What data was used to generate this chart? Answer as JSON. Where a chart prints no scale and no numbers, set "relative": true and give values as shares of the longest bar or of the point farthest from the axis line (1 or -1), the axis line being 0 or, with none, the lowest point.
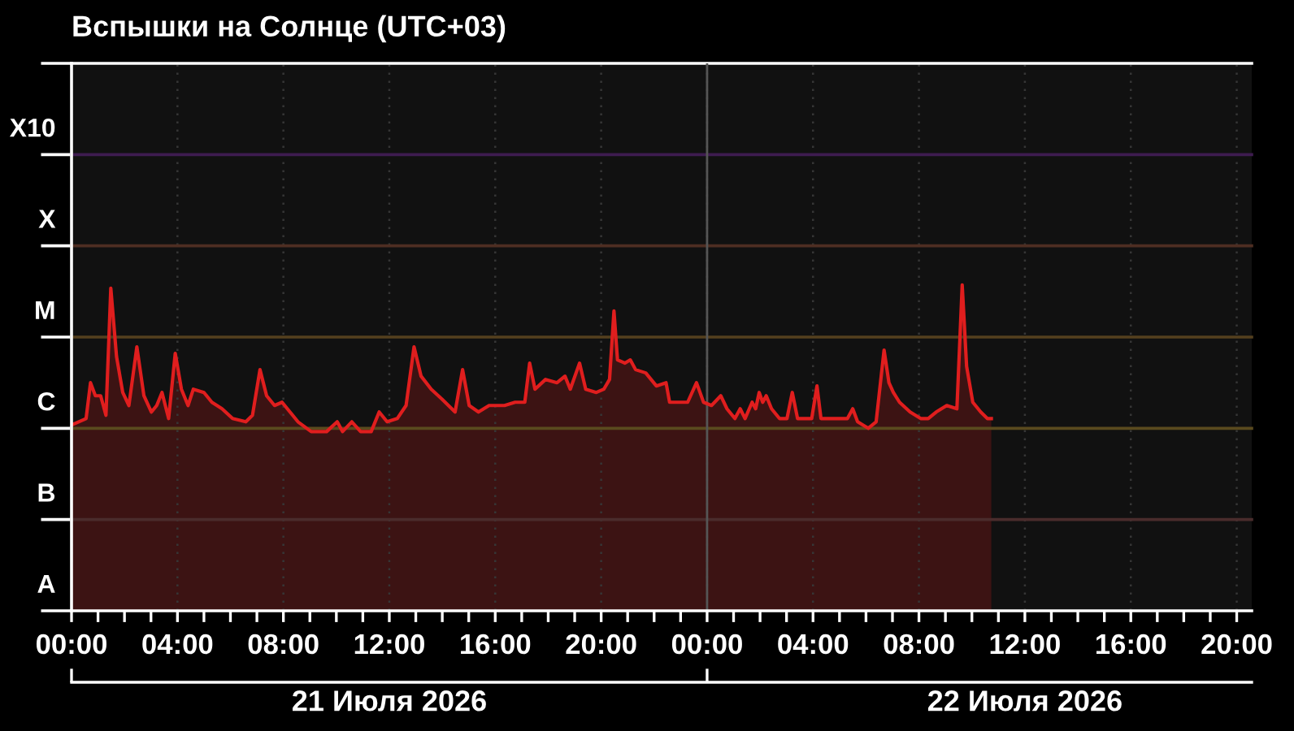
{
  "chart_data": {
    "type": "area",
    "title": "Вспышки на Солнце (UTC+03)",
    "relative": true,
    "grid": "x",
    "xlim": [
      "2026-07-21T00:00",
      "2026-07-22T20:34"
    ],
    "xticks": [
      {
        "value": "2026-07-21T00:00",
        "label": "00:00"
      },
      {
        "value": "2026-07-21T01:00",
        "label": null
      },
      {
        "value": "2026-07-21T02:00",
        "label": null
      },
      {
        "value": "2026-07-21T03:00",
        "label": null
      },
      {
        "value": "2026-07-21T04:00",
        "label": "04:00"
      },
      {
        "value": "2026-07-21T05:00",
        "label": null
      },
      {
        "value": "2026-07-21T06:00",
        "label": null
      },
      {
        "value": "2026-07-21T07:00",
        "label": null
      },
      {
        "value": "2026-07-21T08:00",
        "label": "08:00"
      },
      {
        "value": "2026-07-21T09:00",
        "label": null
      },
      {
        "value": "2026-07-21T10:00",
        "label": null
      },
      {
        "value": "2026-07-21T11:00",
        "label": null
      },
      {
        "value": "2026-07-21T12:00",
        "label": "12:00"
      },
      {
        "value": "2026-07-21T13:00",
        "label": null
      },
      {
        "value": "2026-07-21T14:00",
        "label": null
      },
      {
        "value": "2026-07-21T15:00",
        "label": null
      },
      {
        "value": "2026-07-21T16:00",
        "label": "16:00"
      },
      {
        "value": "2026-07-21T17:00",
        "label": null
      },
      {
        "value": "2026-07-21T18:00",
        "label": null
      },
      {
        "value": "2026-07-21T19:00",
        "label": null
      },
      {
        "value": "2026-07-21T20:00",
        "label": "20:00"
      },
      {
        "value": "2026-07-21T21:00",
        "label": null
      },
      {
        "value": "2026-07-21T22:00",
        "label": null
      },
      {
        "value": "2026-07-21T23:00",
        "label": null
      },
      {
        "value": "2026-07-22T00:00",
        "label": "00:00"
      },
      {
        "value": "2026-07-22T01:00",
        "label": null
      },
      {
        "value": "2026-07-22T02:00",
        "label": null
      },
      {
        "value": "2026-07-22T03:00",
        "label": null
      },
      {
        "value": "2026-07-22T04:00",
        "label": "04:00"
      },
      {
        "value": "2026-07-22T05:00",
        "label": null
      },
      {
        "value": "2026-07-22T06:00",
        "label": null
      },
      {
        "value": "2026-07-22T07:00",
        "label": null
      },
      {
        "value": "2026-07-22T08:00",
        "label": "08:00"
      },
      {
        "value": "2026-07-22T09:00",
        "label": null
      },
      {
        "value": "2026-07-22T10:00",
        "label": null
      },
      {
        "value": "2026-07-22T11:00",
        "label": null
      },
      {
        "value": "2026-07-22T12:00",
        "label": "12:00"
      },
      {
        "value": "2026-07-22T13:00",
        "label": null
      },
      {
        "value": "2026-07-22T14:00",
        "label": null
      },
      {
        "value": "2026-07-22T15:00",
        "label": null
      },
      {
        "value": "2026-07-22T16:00",
        "label": "16:00"
      },
      {
        "value": "2026-07-22T17:00",
        "label": null
      },
      {
        "value": "2026-07-22T18:00",
        "label": null
      },
      {
        "value": "2026-07-22T19:00",
        "label": null
      },
      {
        "value": "2026-07-22T20:00",
        "label": "20:00"
      }
    ],
    "series": [
      {
        "color": "#e01e1e",
        "x": [
          "2026-07-21T00:00",
          "2026-07-21T00:33",
          "2026-07-21T00:43",
          "2026-07-21T00:54",
          "2026-07-21T01:06",
          "2026-07-21T01:18",
          "2026-07-21T01:29",
          "2026-07-21T01:42",
          "2026-07-21T01:56",
          "2026-07-21T02:10",
          "2026-07-21T02:28",
          "2026-07-21T02:44",
          "2026-07-21T03:01",
          "2026-07-21T03:13",
          "2026-07-21T03:25",
          "2026-07-21T03:40",
          "2026-07-21T03:55",
          "2026-07-21T04:09",
          "2026-07-21T04:24",
          "2026-07-21T04:36",
          "2026-07-21T05:00",
          "2026-07-21T05:18",
          "2026-07-21T05:41",
          "2026-07-21T06:05",
          "2026-07-21T06:35",
          "2026-07-21T06:50",
          "2026-07-21T07:07",
          "2026-07-21T07:22",
          "2026-07-21T07:40",
          "2026-07-21T07:57",
          "2026-07-21T08:15",
          "2026-07-21T08:33",
          "2026-07-21T09:03",
          "2026-07-21T09:38",
          "2026-07-21T10:02",
          "2026-07-21T10:14",
          "2026-07-21T10:35",
          "2026-07-21T10:55",
          "2026-07-21T11:19",
          "2026-07-21T11:37",
          "2026-07-21T11:55",
          "2026-07-21T12:18",
          "2026-07-21T12:38",
          "2026-07-21T12:56",
          "2026-07-21T13:12",
          "2026-07-21T13:35",
          "2026-07-21T13:59",
          "2026-07-21T14:29",
          "2026-07-21T14:46",
          "2026-07-21T15:01",
          "2026-07-21T15:22",
          "2026-07-21T15:46",
          "2026-07-21T16:21",
          "2026-07-21T16:45",
          "2026-07-21T17:07",
          "2026-07-21T17:18",
          "2026-07-21T17:30",
          "2026-07-21T17:54",
          "2026-07-21T18:20",
          "2026-07-21T18:38",
          "2026-07-21T18:50",
          "2026-07-21T19:11",
          "2026-07-21T19:25",
          "2026-07-21T19:49",
          "2026-07-21T20:06",
          "2026-07-21T20:19",
          "2026-07-21T20:29",
          "2026-07-21T20:37",
          "2026-07-21T20:54",
          "2026-07-21T21:06",
          "2026-07-21T21:18",
          "2026-07-21T21:41",
          "2026-07-21T22:05",
          "2026-07-21T22:27",
          "2026-07-21T22:35",
          "2026-07-21T22:59",
          "2026-07-21T23:16",
          "2026-07-21T23:36",
          "2026-07-21T23:52",
          "2026-07-22T00:10",
          "2026-07-22T00:31",
          "2026-07-22T00:45",
          "2026-07-22T01:03",
          "2026-07-22T01:15",
          "2026-07-22T01:26",
          "2026-07-22T01:42",
          "2026-07-22T01:50",
          "2026-07-22T01:58",
          "2026-07-22T02:06",
          "2026-07-22T02:14",
          "2026-07-22T02:26",
          "2026-07-22T02:44",
          "2026-07-22T03:01",
          "2026-07-22T03:13",
          "2026-07-22T03:25",
          "2026-07-22T03:43",
          "2026-07-22T03:57",
          "2026-07-22T04:09",
          "2026-07-22T04:18",
          "2026-07-22T04:54",
          "2026-07-22T05:18",
          "2026-07-22T05:30",
          "2026-07-22T05:41",
          "2026-07-22T06:05",
          "2026-07-22T06:23",
          "2026-07-22T06:41",
          "2026-07-22T06:52",
          "2026-07-22T07:02",
          "2026-07-22T07:16",
          "2026-07-22T07:40",
          "2026-07-22T08:04",
          "2026-07-22T08:21",
          "2026-07-22T08:39",
          "2026-07-22T09:03",
          "2026-07-22T09:26",
          "2026-07-22T09:38",
          "2026-07-22T09:48",
          "2026-07-22T10:02",
          "2026-07-22T10:20",
          "2026-07-22T10:35",
          "2026-07-22T10:44"
        ],
        "values": [
          0.57,
          0.59,
          0.7,
          0.66,
          0.66,
          0.6,
          0.99,
          0.78,
          0.67,
          0.63,
          0.81,
          0.66,
          0.61,
          0.63,
          0.67,
          0.59,
          0.79,
          0.68,
          0.63,
          0.68,
          0.67,
          0.64,
          0.62,
          0.59,
          0.58,
          0.6,
          0.74,
          0.66,
          0.63,
          0.64,
          0.61,
          0.58,
          0.55,
          0.55,
          0.58,
          0.55,
          0.58,
          0.55,
          0.55,
          0.61,
          0.58,
          0.59,
          0.63,
          0.81,
          0.72,
          0.68,
          0.65,
          0.61,
          0.74,
          0.63,
          0.61,
          0.63,
          0.63,
          0.64,
          0.64,
          0.76,
          0.68,
          0.71,
          0.7,
          0.72,
          0.68,
          0.76,
          0.68,
          0.67,
          0.68,
          0.71,
          0.92,
          0.77,
          0.76,
          0.77,
          0.74,
          0.73,
          0.69,
          0.7,
          0.64,
          0.64,
          0.64,
          0.7,
          0.64,
          0.63,
          0.66,
          0.62,
          0.59,
          0.62,
          0.59,
          0.64,
          0.62,
          0.67,
          0.64,
          0.66,
          0.62,
          0.59,
          0.59,
          0.67,
          0.59,
          0.59,
          0.59,
          0.69,
          0.59,
          0.59,
          0.59,
          0.62,
          0.58,
          0.56,
          0.58,
          0.8,
          0.7,
          0.67,
          0.64,
          0.61,
          0.59,
          0.59,
          0.61,
          0.63,
          0.62,
          1.0,
          0.75,
          0.64,
          0.61,
          0.59,
          0.59
        ]
      }
    ],
    "ref_lines": [
      {
        "axis": "y",
        "value": 0.28,
        "label": "A",
        "color": "#4a2c2c"
      },
      {
        "axis": "y",
        "value": 0.56,
        "label": "B",
        "color": "#5a4a1e"
      },
      {
        "axis": "y",
        "value": 0.84,
        "label": "C",
        "color": "#54401e"
      },
      {
        "axis": "y",
        "value": 1.12,
        "label": "M",
        "color": "#4e2e22"
      },
      {
        "axis": "y",
        "value": 1.4,
        "label": "X",
        "color": "#3e1c50"
      },
      {
        "axis": "y",
        "value": 1.68,
        "label": "X10",
        "color": "#ffffff"
      },
      {
        "axis": "x",
        "value": "2026-07-22T00:00",
        "color": "#555555"
      }
    ],
    "annotations": [
      "21 Июля 2026",
      "22 Июля 2026"
    ]
  }
}
